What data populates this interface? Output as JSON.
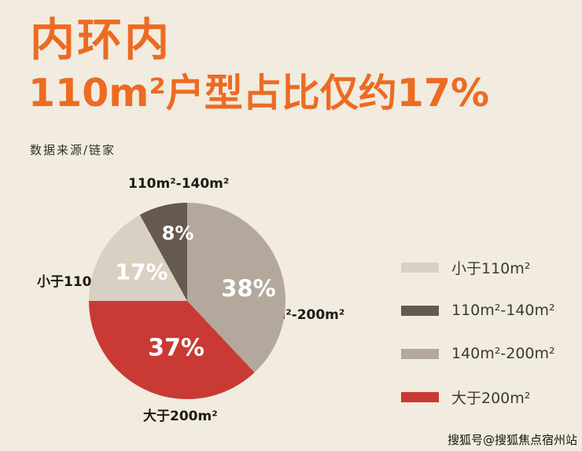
{
  "header": {
    "title_line1": "内环内",
    "title_line2": "110m²户型占比仅约17%",
    "source": "数据来源/链家"
  },
  "footer": {
    "watermark": "搜狐号@搜狐焦点宿州站"
  },
  "colors": {
    "background": "#f1ecdf",
    "accent_orange": "#ec6b23",
    "text_dark": "#1d1a15"
  },
  "chart_data": {
    "type": "pie",
    "title": "内环内 110m²户型占比仅约17%",
    "source": "数据来源/链家",
    "unit": "percent",
    "start_angle_deg": 0,
    "direction": "clockwise",
    "legend_position": "right",
    "slices": [
      {
        "label": "140m²-200m²",
        "value": 38,
        "pct": "38%",
        "color": "#b4a89c"
      },
      {
        "label": "大于200m²",
        "value": 37,
        "pct": "37%",
        "color": "#c93a34"
      },
      {
        "label": "小于110m²",
        "value": 17,
        "pct": "17%",
        "color": "#d8d1c3"
      },
      {
        "label": "110m²-140m²",
        "value": 8,
        "pct": "8%",
        "color": "#665a4e"
      }
    ],
    "legend": [
      {
        "label": "小于110m²",
        "color": "#d8d1c3"
      },
      {
        "label": "110m²-140m²",
        "color": "#665a4e"
      },
      {
        "label": "140m²-200m²",
        "color": "#b4a89c"
      },
      {
        "label": "大于200m²",
        "color": "#c93a34"
      }
    ]
  }
}
